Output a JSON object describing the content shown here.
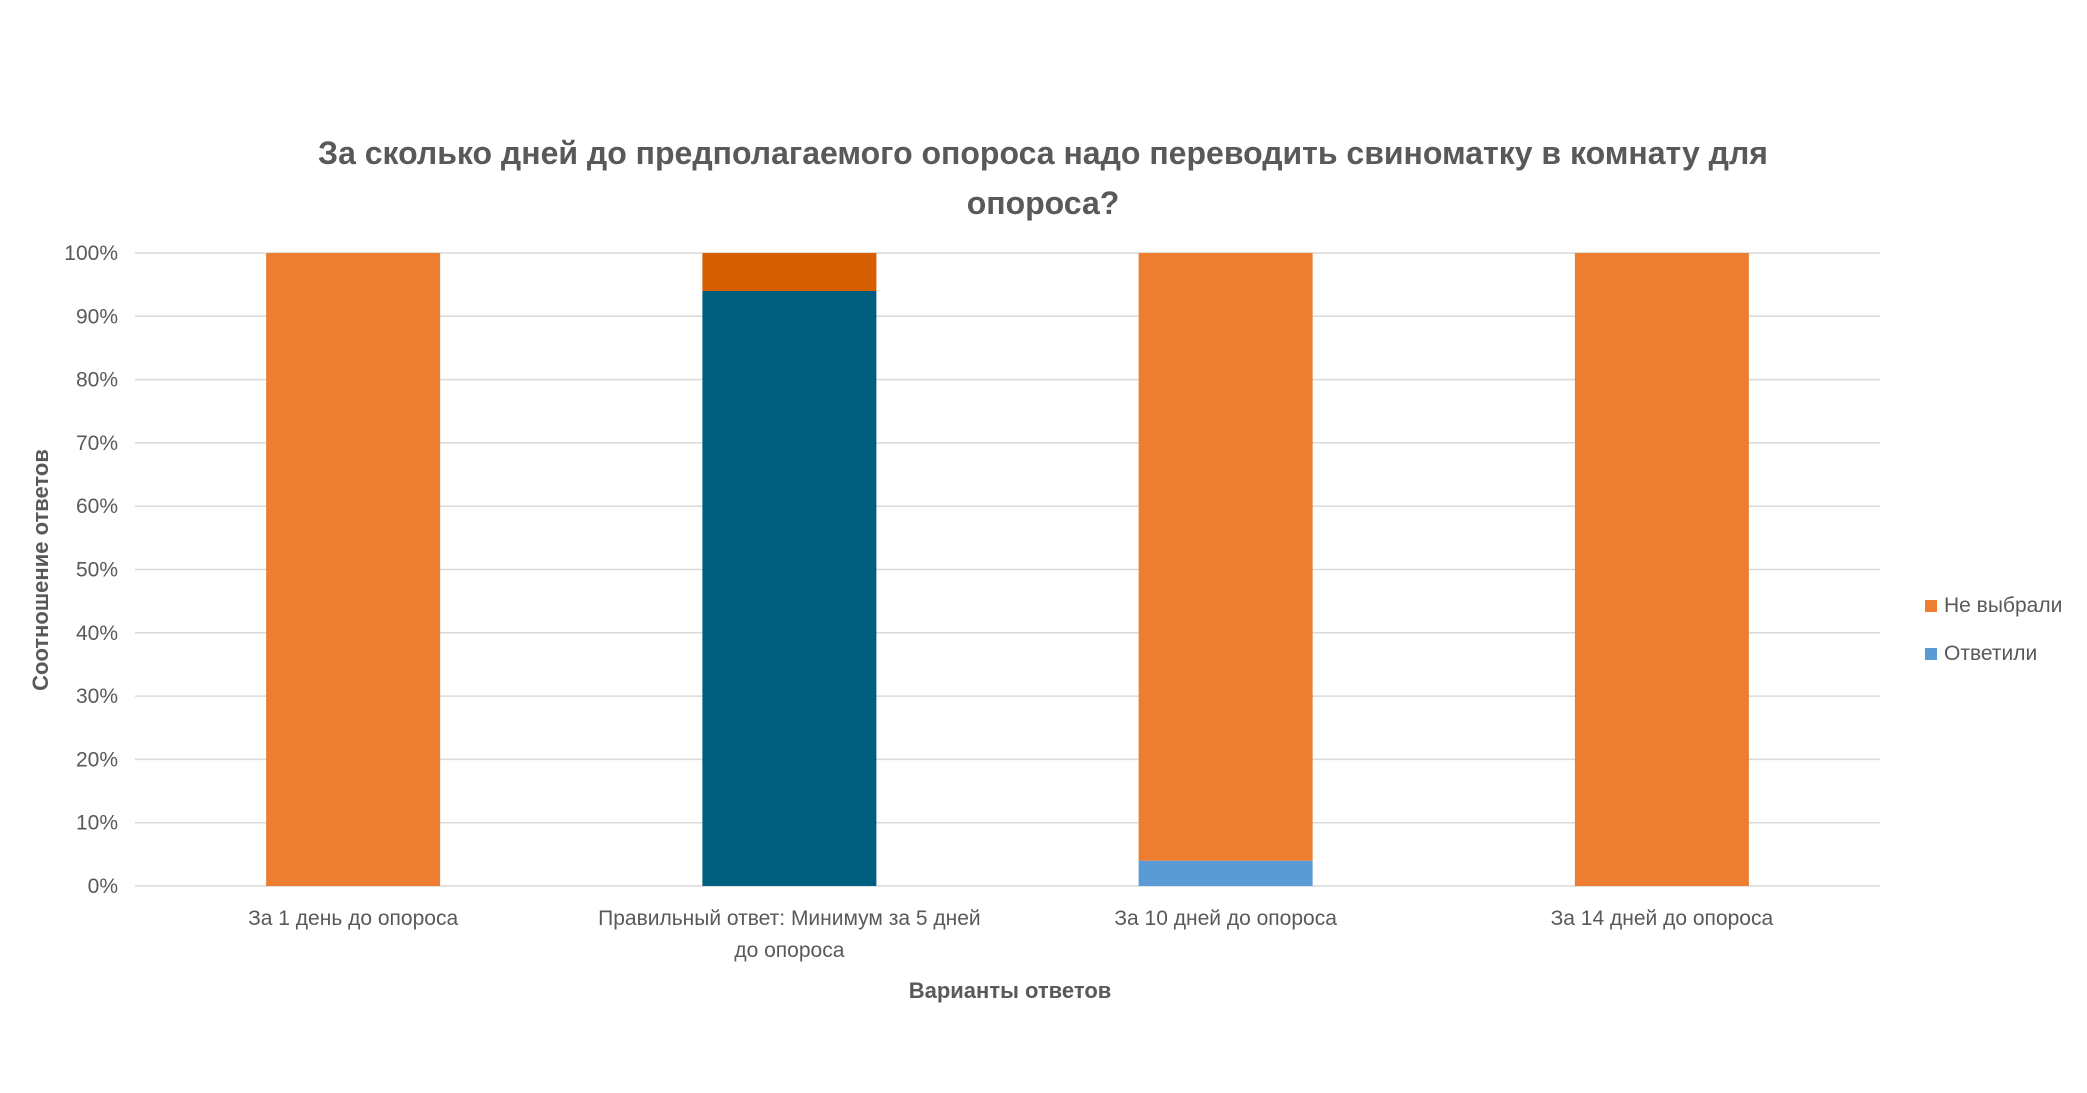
{
  "chart_data": {
    "type": "bar",
    "stacked": true,
    "title_lines": [
      "За сколько дней до предполагаемого опороса надо переводить свиноматку в комнату для",
      "опороса?"
    ],
    "xlabel": "Варианты ответов",
    "ylabel": "Соотношение ответов",
    "ylim": [
      0,
      100
    ],
    "yticks": [
      "0%",
      "10%",
      "20%",
      "30%",
      "40%",
      "50%",
      "60%",
      "70%",
      "80%",
      "90%",
      "100%"
    ],
    "grid": true,
    "legend_position": "right",
    "categories": [
      [
        "За 1 день до опороса"
      ],
      [
        "Правильный ответ: Минимум за 5 дней",
        "до опороса"
      ],
      [
        "За 10 дней до опороса"
      ],
      [
        "За 14 дней до опороса"
      ]
    ],
    "series": [
      {
        "name": "Ответили",
        "values": [
          0,
          94,
          4,
          0
        ],
        "color": "#5b9bd5",
        "highlight_colors": [
          null,
          "#005f7f",
          null,
          null
        ]
      },
      {
        "name": "Не выбрали",
        "values": [
          100,
          6,
          96,
          100
        ],
        "color": "#ed7d31",
        "highlight_colors": [
          null,
          "#d55e00",
          null,
          null
        ]
      }
    ],
    "legend": [
      {
        "name": "Не выбрали",
        "color": "#ed7d31"
      },
      {
        "name": "Ответили",
        "color": "#5b9bd5"
      }
    ]
  }
}
